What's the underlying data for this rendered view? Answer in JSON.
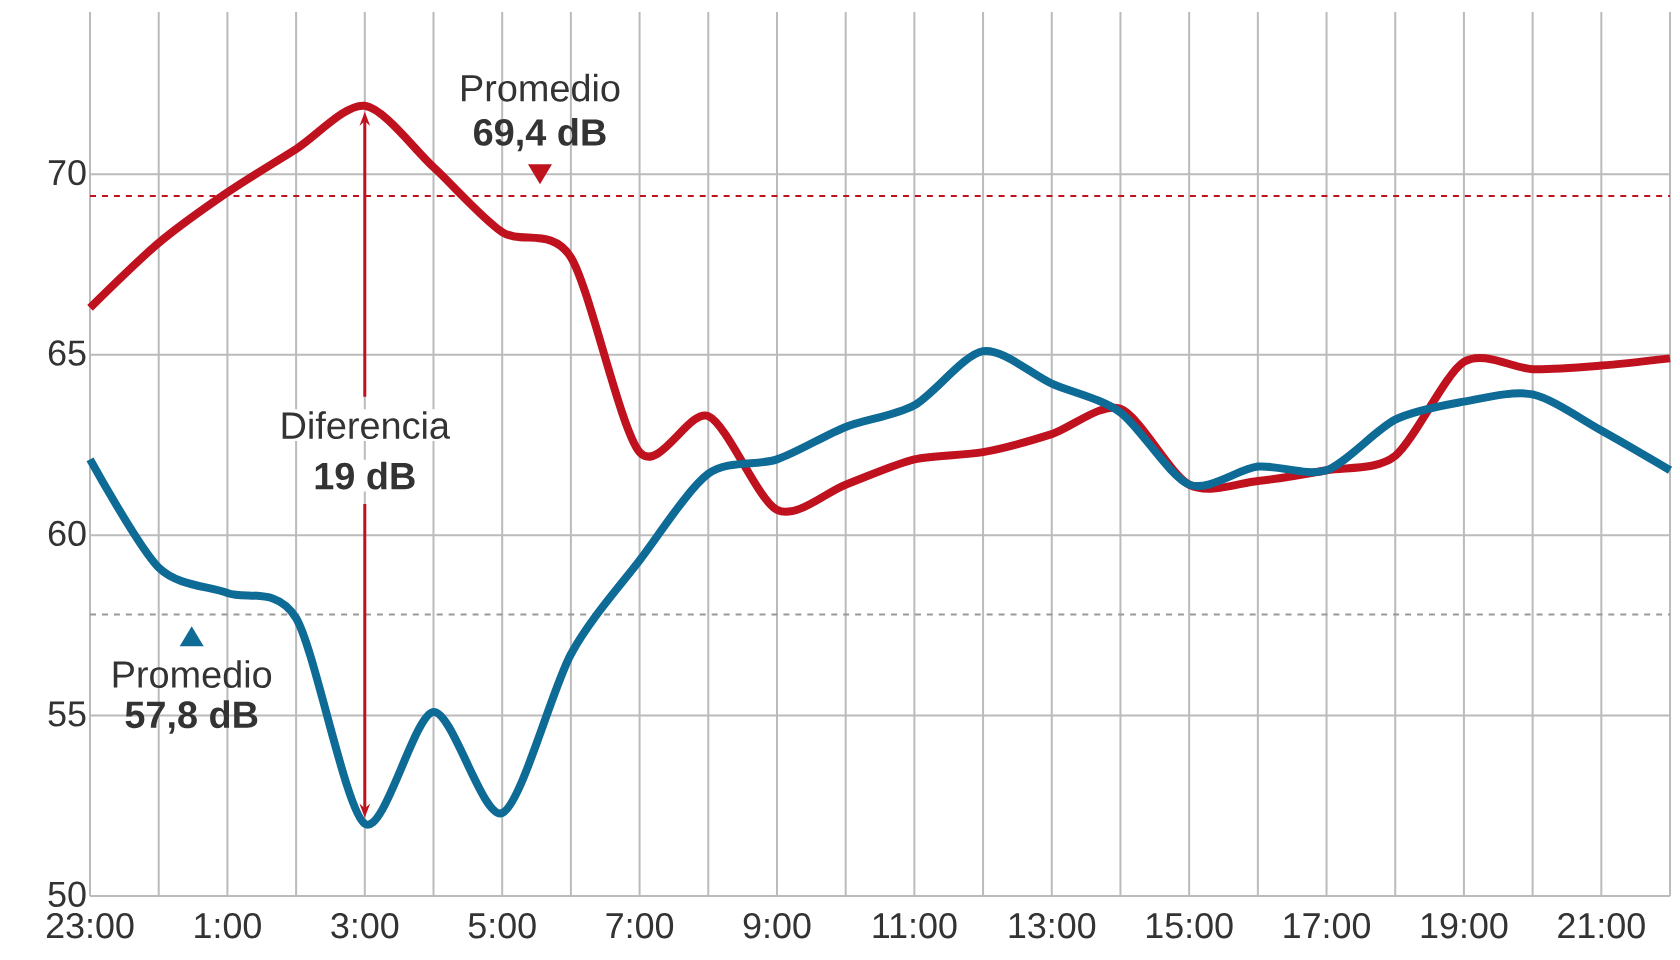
{
  "chart_data": {
    "type": "line",
    "categories": [
      "23:00",
      null,
      "1:00",
      null,
      "3:00",
      null,
      "5:00",
      null,
      "7:00",
      null,
      "9:00",
      null,
      "11:00",
      null,
      "13:00",
      null,
      "15:00",
      null,
      "17:00",
      null,
      "19:00",
      null,
      "21:00",
      null
    ],
    "series": [
      {
        "color": "#c0111f",
        "values": [
          66.3,
          68.1,
          69.5,
          70.7,
          71.9,
          70.2,
          68.4,
          67.7,
          62.3,
          63.3,
          60.7,
          61.4,
          62.1,
          62.3,
          62.8,
          63.5,
          61.4,
          61.5,
          61.8,
          62.2,
          64.8,
          64.6,
          64.7,
          64.9
        ]
      },
      {
        "color": "#0e6b96",
        "values": [
          62.1,
          59.1,
          58.4,
          57.7,
          52.0,
          55.1,
          52.3,
          56.7,
          59.3,
          61.7,
          62.1,
          63.0,
          63.6,
          65.1,
          64.2,
          63.4,
          61.4,
          61.9,
          61.8,
          63.2,
          63.7,
          63.9,
          62.9,
          61.8
        ]
      }
    ],
    "ylim": [
      50,
      74.5
    ],
    "yticks": [
      50,
      55,
      60,
      65,
      70
    ],
    "grid": true,
    "ref_lines": [
      {
        "axis": "y",
        "value": 69.4,
        "color": "#c0111f",
        "line_style": "dashed"
      },
      {
        "axis": "y",
        "value": 57.8,
        "color": "#999999",
        "line_style": "dashed"
      }
    ],
    "annotations": [
      "Promedio",
      "69,4 dB",
      "Promedio",
      "57,8 dB",
      {
        "text": "Diferencia",
        "x": "3:00",
        "y": 71.9
      },
      {
        "text": "19 dB",
        "x": "3:00",
        "y": 52.0
      }
    ]
  }
}
